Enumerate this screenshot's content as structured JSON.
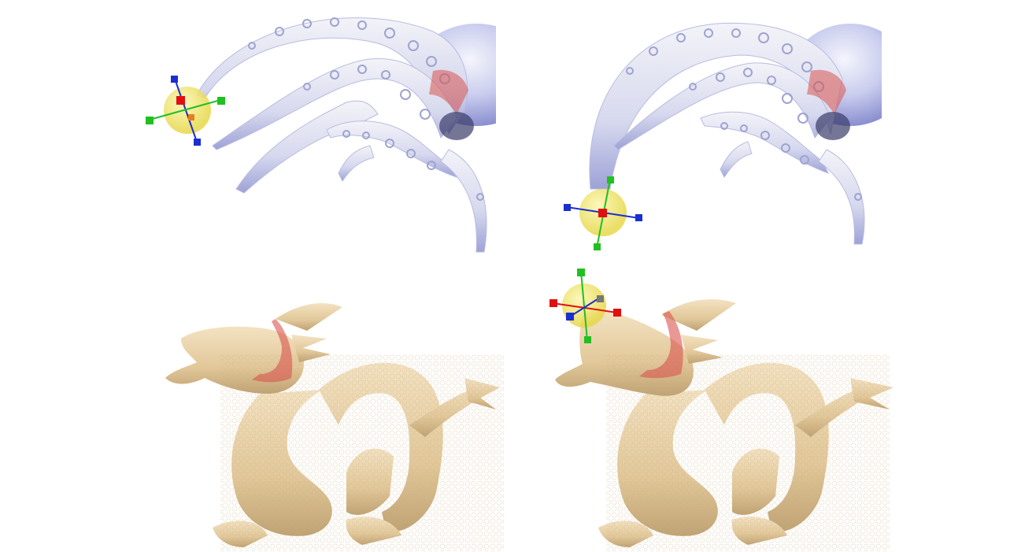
{
  "figure": {
    "panels": [
      {
        "id": "octopus-before",
        "subject": "octopus",
        "state": "handle-at-tentacle-tip"
      },
      {
        "id": "octopus-after",
        "subject": "octopus",
        "state": "tentacle-deformed-downward"
      },
      {
        "id": "dragon-before",
        "subject": "dragon",
        "state": "handle-absent"
      },
      {
        "id": "dragon-after",
        "subject": "dragon",
        "state": "head-deformed-upward"
      }
    ],
    "colors": {
      "octopus_body": "#d9dcf2",
      "octopus_shade": "#9ea3d8",
      "dragon_body": "#e9d4ae",
      "dragon_shade": "#b89a6a",
      "region_highlight": "#d9534f",
      "handle_sphere": "#f2ea6a",
      "axis_x": "#e01010",
      "axis_y": "#20c020",
      "axis_z": "#1a2fd0"
    },
    "icons": [
      "manipulator-handle-icon",
      "transform-gizmo-icon"
    ]
  }
}
